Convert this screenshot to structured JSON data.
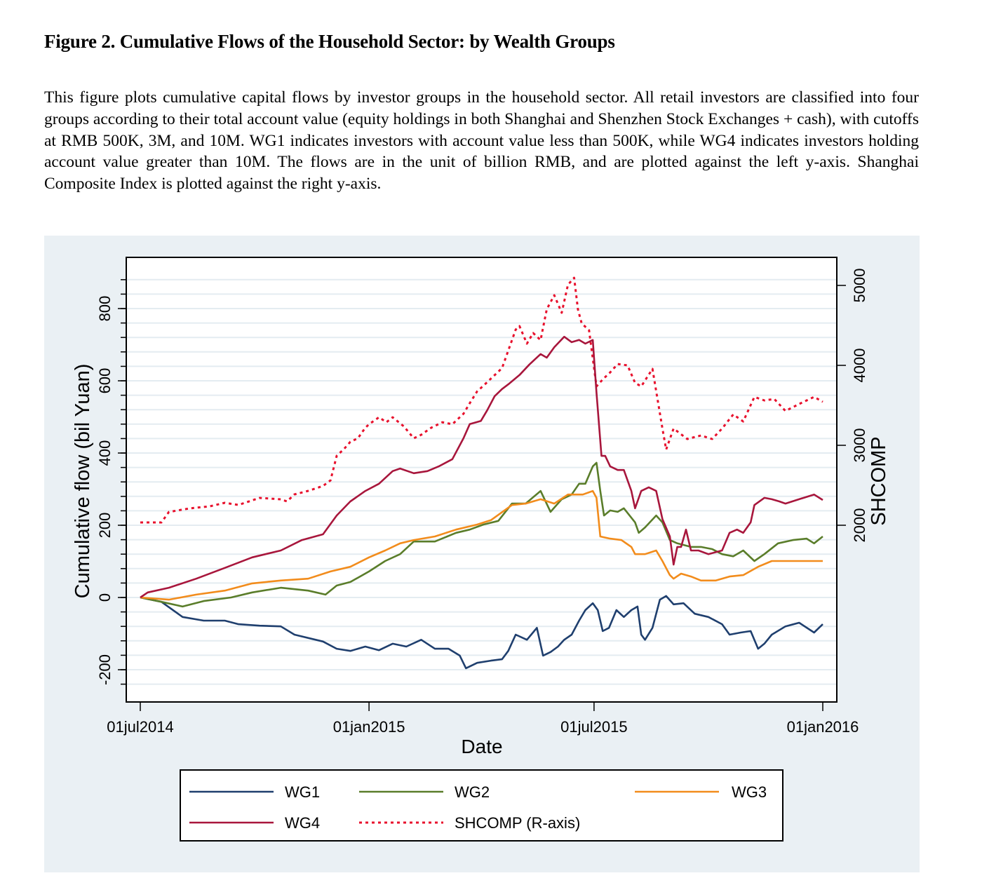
{
  "figure": {
    "title": "Figure 2. Cumulative Flows of the Household Sector: by Wealth Groups",
    "caption": "This figure plots cumulative capital flows by investor groups in the household sector. All retail investors are classified into four groups according to their total account value (equity holdings in both Shanghai and Shenzhen Stock Exchanges + cash), with cutoffs at RMB 500K, 3M, and 10M. WG1 indicates investors with account value less than 500K, while WG4 indicates investors holding account value greater than 10M. The flows are in the unit of billion RMB, and are plotted against the left y-axis. Shanghai Composite Index is plotted against the right y-axis."
  },
  "chart_data": {
    "type": "line",
    "title": "",
    "xlabel": "Date",
    "ylabel": "Cumulative flow (bil Yuan)",
    "y2label": "SHCOMP",
    "x_unit": "days since 01jul2014",
    "xlim": [
      0,
      549
    ],
    "x_ticks": [
      {
        "day": 0,
        "label": "01jul2014"
      },
      {
        "day": 184,
        "label": "01jan2015"
      },
      {
        "day": 365,
        "label": "01jul2015"
      },
      {
        "day": 549,
        "label": "01jan2016"
      }
    ],
    "ylim": [
      -280,
      930
    ],
    "y_ticks": [
      -200,
      0,
      200,
      400,
      600,
      800
    ],
    "y_tick_labels": [
      "-200",
      "0",
      "200",
      "400",
      "600",
      "800"
    ],
    "y_minor_step": 40,
    "y2lim": [
      1000,
      5600
    ],
    "y2_ticks": [
      2000,
      3000,
      4000,
      5000
    ],
    "y2_tick_labels": [
      "2000",
      "3000",
      "4000",
      "5000"
    ],
    "grid": true,
    "legend_position": "bottom",
    "series": [
      {
        "name": "WG1",
        "axis": "left",
        "color": "#1f3f6e",
        "dash": "solid",
        "x": [
          0,
          17,
          34,
          51,
          68,
          79,
          96,
          113,
          124,
          147,
          158,
          169,
          181,
          192,
          203,
          214,
          226,
          237,
          248,
          257,
          262,
          271,
          282,
          291,
          296,
          302,
          311,
          319,
          324,
          330,
          336,
          341,
          347,
          353,
          358,
          364,
          368,
          372,
          377,
          383,
          389,
          395,
          400,
          403,
          406,
          412,
          418,
          423,
          429,
          437,
          446,
          457,
          468,
          474,
          483,
          491,
          497,
          502,
          508,
          519,
          530,
          542,
          549
        ],
        "values": [
          0,
          -12,
          -54,
          -64,
          -64,
          -74,
          -78,
          -80,
          -103,
          -122,
          -142,
          -148,
          -136,
          -146,
          -128,
          -136,
          -117,
          -142,
          -142,
          -161,
          -196,
          -181,
          -175,
          -171,
          -148,
          -103,
          -117,
          -84,
          -161,
          -151,
          -136,
          -117,
          -103,
          -64,
          -35,
          -16,
          -35,
          -93,
          -84,
          -35,
          -54,
          -35,
          -25,
          -103,
          -117,
          -84,
          -6,
          4,
          -19,
          -16,
          -45,
          -54,
          -74,
          -103,
          -97,
          -93,
          -142,
          -128,
          -103,
          -80,
          -70,
          -97,
          -74
        ]
      },
      {
        "name": "WG2",
        "axis": "left",
        "color": "#5a7d2a",
        "dash": "solid",
        "x": [
          0,
          17,
          34,
          51,
          73,
          90,
          113,
          135,
          149,
          158,
          169,
          184,
          197,
          209,
          220,
          237,
          254,
          265,
          276,
          288,
          299,
          310,
          322,
          330,
          339,
          347,
          353,
          358,
          364,
          367,
          370,
          373,
          378,
          384,
          389,
          398,
          401,
          406,
          415,
          420,
          426,
          432,
          443,
          451,
          460,
          468,
          477,
          485,
          494,
          502,
          513,
          525,
          536,
          542,
          549
        ],
        "values": [
          0,
          -12,
          -25,
          -10,
          0,
          14,
          27,
          19,
          8,
          33,
          43,
          72,
          101,
          120,
          155,
          155,
          179,
          188,
          202,
          212,
          260,
          260,
          295,
          237,
          272,
          285,
          315,
          315,
          363,
          373,
          295,
          227,
          241,
          237,
          247,
          208,
          179,
          194,
          227,
          208,
          159,
          150,
          140,
          140,
          134,
          120,
          114,
          130,
          101,
          120,
          150,
          159,
          163,
          150,
          169
        ]
      },
      {
        "name": "WG3",
        "axis": "left",
        "color": "#f28c1c",
        "dash": "solid",
        "x": [
          0,
          23,
          45,
          68,
          90,
          113,
          135,
          153,
          169,
          184,
          197,
          209,
          220,
          237,
          254,
          271,
          282,
          299,
          310,
          322,
          333,
          344,
          356,
          364,
          367,
          370,
          378,
          387,
          395,
          398,
          406,
          415,
          420,
          426,
          429,
          435,
          443,
          451,
          463,
          474,
          485,
          497,
          508,
          519,
          530,
          549
        ],
        "values": [
          0,
          -6,
          8,
          19,
          39,
          47,
          52,
          72,
          85,
          111,
          130,
          150,
          159,
          169,
          188,
          202,
          214,
          256,
          260,
          272,
          260,
          285,
          285,
          295,
          276,
          169,
          163,
          159,
          140,
          120,
          120,
          130,
          101,
          62,
          52,
          66,
          58,
          47,
          47,
          58,
          62,
          85,
          101,
          101,
          101,
          101
        ]
      },
      {
        "name": "WG4",
        "axis": "left",
        "color": "#a8163c",
        "dash": "solid",
        "x": [
          0,
          6,
          23,
          45,
          68,
          90,
          113,
          130,
          147,
          158,
          169,
          181,
          192,
          203,
          209,
          220,
          231,
          240,
          251,
          260,
          265,
          274,
          279,
          285,
          291,
          296,
          305,
          313,
          322,
          327,
          333,
          341,
          347,
          353,
          358,
          364,
          367,
          371,
          374,
          378,
          384,
          389,
          395,
          398,
          403,
          409,
          415,
          420,
          426,
          429,
          432,
          435,
          439,
          443,
          449,
          457,
          468,
          474,
          480,
          485,
          491,
          494,
          502,
          508,
          514,
          519,
          530,
          542,
          549
        ],
        "values": [
          0,
          14,
          27,
          52,
          82,
          111,
          130,
          159,
          175,
          227,
          266,
          295,
          315,
          350,
          357,
          344,
          350,
          363,
          383,
          441,
          480,
          489,
          518,
          557,
          577,
          590,
          616,
          645,
          674,
          664,
          693,
          722,
          707,
          713,
          703,
          713,
          567,
          392,
          392,
          363,
          353,
          353,
          295,
          247,
          295,
          305,
          295,
          217,
          169,
          91,
          140,
          140,
          188,
          130,
          130,
          120,
          130,
          179,
          188,
          179,
          208,
          256,
          276,
          272,
          266,
          260,
          272,
          285,
          270
        ]
      },
      {
        "name": "SHCOMP (R-axis)",
        "axis": "right",
        "color": "#e8112d",
        "dash": "dotted",
        "x": [
          0,
          17,
          23,
          40,
          56,
          68,
          79,
          96,
          113,
          118,
          124,
          135,
          147,
          153,
          158,
          164,
          169,
          175,
          181,
          184,
          192,
          198,
          203,
          212,
          220,
          226,
          234,
          243,
          251,
          260,
          265,
          271,
          276,
          285,
          291,
          296,
          302,
          305,
          311,
          316,
          322,
          327,
          333,
          339,
          344,
          349,
          352,
          355,
          361,
          364,
          367,
          372,
          378,
          384,
          392,
          398,
          403,
          412,
          420,
          423,
          429,
          440,
          451,
          460,
          468,
          477,
          485,
          494,
          502,
          510,
          519,
          530,
          542,
          549
        ],
        "values": [
          2035,
          2035,
          2167,
          2211,
          2237,
          2281,
          2254,
          2342,
          2325,
          2298,
          2386,
          2430,
          2491,
          2561,
          2868,
          2956,
          3044,
          3088,
          3219,
          3263,
          3351,
          3289,
          3351,
          3237,
          3088,
          3132,
          3219,
          3289,
          3263,
          3395,
          3526,
          3675,
          3746,
          3877,
          3965,
          4184,
          4447,
          4491,
          4272,
          4404,
          4316,
          4702,
          4877,
          4658,
          5009,
          5096,
          4702,
          4526,
          4439,
          4088,
          3737,
          3825,
          3912,
          4017,
          4000,
          3781,
          3737,
          3956,
          3210,
          2947,
          3210,
          3079,
          3123,
          3079,
          3210,
          3386,
          3298,
          3605,
          3561,
          3579,
          3430,
          3517,
          3605,
          3544
        ]
      }
    ],
    "legend": [
      {
        "label": "WG1",
        "series": 0
      },
      {
        "label": "WG2",
        "series": 1
      },
      {
        "label": "WG3",
        "series": 2
      },
      {
        "label": "WG4",
        "series": 3
      },
      {
        "label": "SHCOMP (R-axis)",
        "series": 4
      }
    ]
  }
}
